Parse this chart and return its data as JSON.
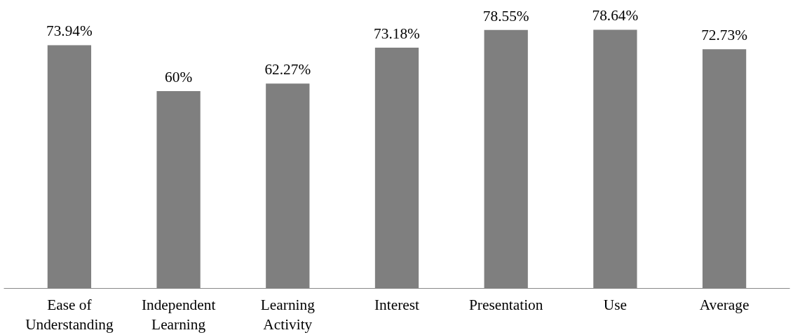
{
  "chart_data": {
    "type": "bar",
    "categories": [
      "Ease of Understanding",
      "Independent Learning",
      "Learning Activity",
      "Interest",
      "Presentation",
      "Use",
      "Average"
    ],
    "values": [
      73.94,
      60,
      62.27,
      73.18,
      78.55,
      78.64,
      72.73
    ],
    "value_labels": [
      "73.94%",
      "60%",
      "62.27%",
      "73.18%",
      "78.55%",
      "78.64%",
      "72.73%"
    ],
    "color": "#7f7f7f",
    "grid": false
  }
}
